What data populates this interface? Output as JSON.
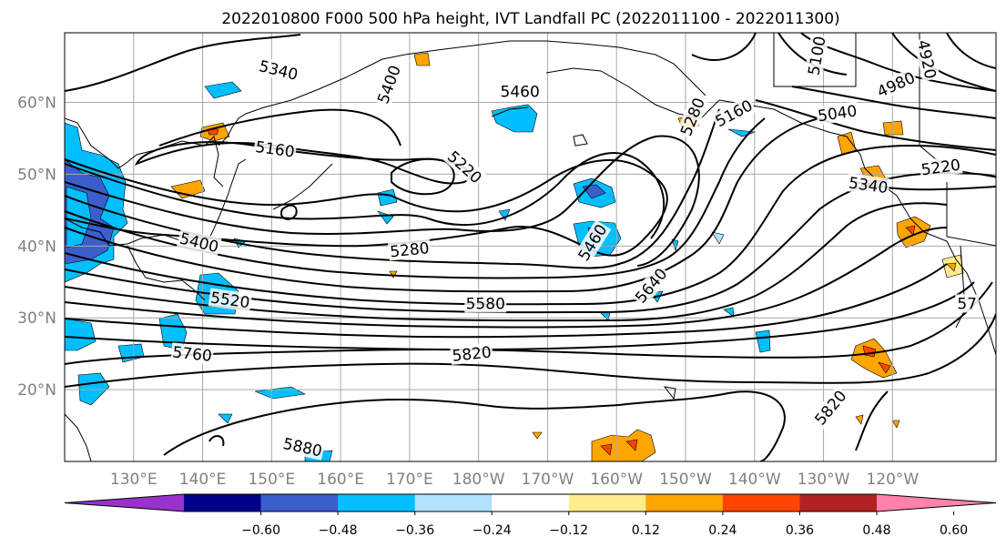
{
  "title": "2022010800 F000 500 hPa height, IVT Landfall PC (2022011100 - 2022011300)",
  "map": {
    "lat_ticks": [
      {
        "lat": 60,
        "label": "60°N"
      },
      {
        "lat": 50,
        "label": "50°N"
      },
      {
        "lat": 40,
        "label": "40°N"
      },
      {
        "lat": 30,
        "label": "30°N"
      },
      {
        "lat": 20,
        "label": "20°N"
      }
    ],
    "lon_ticks": [
      {
        "lon": 130,
        "label": "130°E"
      },
      {
        "lon": 140,
        "label": "140°E"
      },
      {
        "lon": 150,
        "label": "150°E"
      },
      {
        "lon": 160,
        "label": "160°E"
      },
      {
        "lon": 170,
        "label": "170°E"
      },
      {
        "lon": 180,
        "label": "180°W"
      },
      {
        "lon": 190,
        "label": "170°W"
      },
      {
        "lon": 200,
        "label": "160°W"
      },
      {
        "lon": 210,
        "label": "150°W"
      },
      {
        "lon": 220,
        "label": "140°W"
      },
      {
        "lon": 230,
        "label": "130°W"
      },
      {
        "lon": 240,
        "label": "120°W"
      }
    ],
    "contour_labels": [
      {
        "text": "5340",
        "lon": 151,
        "lat": 64.5,
        "angle": 14
      },
      {
        "text": "5400",
        "lon": 167,
        "lat": 62.5,
        "angle": -70
      },
      {
        "text": "5460",
        "lon": 186,
        "lat": 61.5,
        "angle": 0
      },
      {
        "text": "5160",
        "lon": 150.5,
        "lat": 53.5,
        "angle": 8
      },
      {
        "text": "5220",
        "lon": 178,
        "lat": 51,
        "angle": 42
      },
      {
        "text": "5400",
        "lon": 139.5,
        "lat": 40.5,
        "angle": 14
      },
      {
        "text": "5280",
        "lon": 170,
        "lat": 39.5,
        "angle": -6
      },
      {
        "text": "5520",
        "lon": 144,
        "lat": 32.5,
        "angle": 8
      },
      {
        "text": "5580",
        "lon": 181,
        "lat": 32,
        "angle": 0
      },
      {
        "text": "5460",
        "lon": 196.5,
        "lat": 40.5,
        "angle": -58
      },
      {
        "text": "5640",
        "lon": 205,
        "lat": 34.5,
        "angle": -50
      },
      {
        "text": "5760",
        "lon": 138.5,
        "lat": 25,
        "angle": 6
      },
      {
        "text": "5820",
        "lon": 179,
        "lat": 25,
        "angle": -6
      },
      {
        "text": "5880",
        "lon": 154.5,
        "lat": 12,
        "angle": 12
      },
      {
        "text": "5160",
        "lon": 217,
        "lat": 58.5,
        "angle": -28
      },
      {
        "text": "5280",
        "lon": 211,
        "lat": 58,
        "angle": -68
      },
      {
        "text": "5040",
        "lon": 232,
        "lat": 58.5,
        "angle": -8
      },
      {
        "text": "4980",
        "lon": 240.5,
        "lat": 62.5,
        "angle": -24
      },
      {
        "text": "4920",
        "lon": 245,
        "lat": 66,
        "angle": 78
      },
      {
        "text": "5100",
        "lon": 229,
        "lat": 66.5,
        "angle": -80
      },
      {
        "text": "5220",
        "lon": 247,
        "lat": 51,
        "angle": -8
      },
      {
        "text": "5340",
        "lon": 236.5,
        "lat": 48.5,
        "angle": 8
      },
      {
        "text": "57",
        "lon": 250.8,
        "lat": 32,
        "angle": 0
      },
      {
        "text": "5820",
        "lon": 231,
        "lat": 17.5,
        "angle": -50
      }
    ]
  },
  "colorbar": {
    "ticks": [
      "−0.60",
      "−0.48",
      "−0.36",
      "−0.24",
      "−0.12",
      "0.12",
      "0.24",
      "0.36",
      "0.48",
      "0.60"
    ],
    "bin_colors": [
      "#9932cc",
      "#00008b",
      "#3a5fcd",
      "#00bfff",
      "#b0e2ff",
      "#ffffff",
      "#ffec8b",
      "#ffa500",
      "#ff4500",
      "#b22222",
      "#ff82ab"
    ],
    "extend": "both"
  }
}
